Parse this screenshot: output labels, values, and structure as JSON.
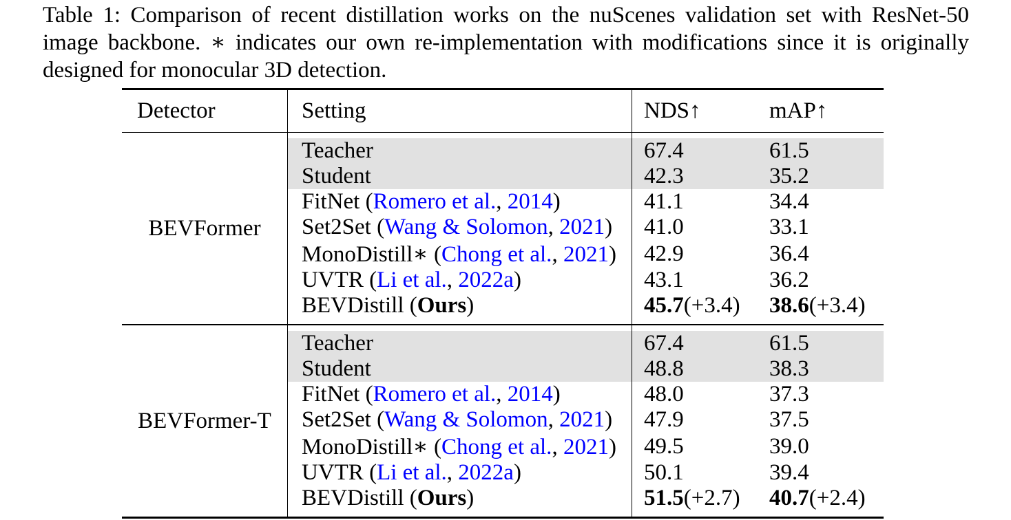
{
  "caption": {
    "lines": [
      "Table 1: Comparison of recent distillation works on the nuScenes validation set with ResNet-50",
      "image backbone. ∗ indicates our own re-implementation with modifications since it is originally",
      "designed for monocular 3D detection."
    ]
  },
  "table": {
    "headers": {
      "detector": "Detector",
      "setting": "Setting",
      "nds": "NDS↑",
      "map": "mAP↑"
    },
    "colors": {
      "link": "#0000FF",
      "shaded_row": "#E1E1E1",
      "rule": "#000000"
    },
    "groups": [
      {
        "detector": "BEVFormer",
        "rows": [
          {
            "shaded": true,
            "setting": [
              {
                "t": "Teacher",
                "s": "plain"
              }
            ],
            "nds": [
              {
                "t": "67.4",
                "s": "plain"
              }
            ],
            "map": [
              {
                "t": "61.5",
                "s": "plain"
              }
            ]
          },
          {
            "shaded": true,
            "setting": [
              {
                "t": "Student",
                "s": "plain"
              }
            ],
            "nds": [
              {
                "t": "42.3",
                "s": "plain"
              }
            ],
            "map": [
              {
                "t": "35.2",
                "s": "plain"
              }
            ]
          },
          {
            "shaded": false,
            "setting": [
              {
                "t": "FitNet (",
                "s": "plain"
              },
              {
                "t": "Romero et al.",
                "s": "link"
              },
              {
                "t": ", ",
                "s": "plain"
              },
              {
                "t": "2014",
                "s": "link"
              },
              {
                "t": ")",
                "s": "plain"
              }
            ],
            "nds": [
              {
                "t": "41.1",
                "s": "plain"
              }
            ],
            "map": [
              {
                "t": "34.4",
                "s": "plain"
              }
            ]
          },
          {
            "shaded": false,
            "setting": [
              {
                "t": "Set2Set (",
                "s": "plain"
              },
              {
                "t": "Wang & Solomon",
                "s": "link"
              },
              {
                "t": ", ",
                "s": "plain"
              },
              {
                "t": "2021",
                "s": "link"
              },
              {
                "t": ")",
                "s": "plain"
              }
            ],
            "nds": [
              {
                "t": "41.0",
                "s": "plain"
              }
            ],
            "map": [
              {
                "t": "33.1",
                "s": "plain"
              }
            ]
          },
          {
            "shaded": false,
            "setting": [
              {
                "t": "MonoDistill∗ (",
                "s": "plain"
              },
              {
                "t": "Chong et al.",
                "s": "link"
              },
              {
                "t": ", ",
                "s": "plain"
              },
              {
                "t": "2021",
                "s": "link"
              },
              {
                "t": ")",
                "s": "plain"
              }
            ],
            "nds": [
              {
                "t": "42.9",
                "s": "plain"
              }
            ],
            "map": [
              {
                "t": "36.4",
                "s": "plain"
              }
            ]
          },
          {
            "shaded": false,
            "setting": [
              {
                "t": "UVTR (",
                "s": "plain"
              },
              {
                "t": "Li et al.",
                "s": "link"
              },
              {
                "t": ", ",
                "s": "plain"
              },
              {
                "t": "2022a",
                "s": "link"
              },
              {
                "t": ")",
                "s": "plain"
              }
            ],
            "nds": [
              {
                "t": "43.1",
                "s": "plain"
              }
            ],
            "map": [
              {
                "t": "36.2",
                "s": "plain"
              }
            ]
          },
          {
            "shaded": false,
            "setting": [
              {
                "t": "BEVDistill (",
                "s": "plain"
              },
              {
                "t": "Ours",
                "s": "bold"
              },
              {
                "t": ")",
                "s": "plain"
              }
            ],
            "nds": [
              {
                "t": "45.7",
                "s": "bold"
              },
              {
                "t": "(+3.4)",
                "s": "plain"
              }
            ],
            "map": [
              {
                "t": "38.6",
                "s": "bold"
              },
              {
                "t": "(+3.4)",
                "s": "plain"
              }
            ]
          }
        ]
      },
      {
        "detector": "BEVFormer-T",
        "rows": [
          {
            "shaded": true,
            "setting": [
              {
                "t": "Teacher",
                "s": "plain"
              }
            ],
            "nds": [
              {
                "t": "67.4",
                "s": "plain"
              }
            ],
            "map": [
              {
                "t": "61.5",
                "s": "plain"
              }
            ]
          },
          {
            "shaded": true,
            "setting": [
              {
                "t": "Student",
                "s": "plain"
              }
            ],
            "nds": [
              {
                "t": "48.8",
                "s": "plain"
              }
            ],
            "map": [
              {
                "t": "38.3",
                "s": "plain"
              }
            ]
          },
          {
            "shaded": false,
            "setting": [
              {
                "t": "FitNet (",
                "s": "plain"
              },
              {
                "t": "Romero et al.",
                "s": "link"
              },
              {
                "t": ", ",
                "s": "plain"
              },
              {
                "t": "2014",
                "s": "link"
              },
              {
                "t": ")",
                "s": "plain"
              }
            ],
            "nds": [
              {
                "t": "48.0",
                "s": "plain"
              }
            ],
            "map": [
              {
                "t": "37.3",
                "s": "plain"
              }
            ]
          },
          {
            "shaded": false,
            "setting": [
              {
                "t": "Set2Set (",
                "s": "plain"
              },
              {
                "t": "Wang & Solomon",
                "s": "link"
              },
              {
                "t": ", ",
                "s": "plain"
              },
              {
                "t": "2021",
                "s": "link"
              },
              {
                "t": ")",
                "s": "plain"
              }
            ],
            "nds": [
              {
                "t": "47.9",
                "s": "plain"
              }
            ],
            "map": [
              {
                "t": "37.5",
                "s": "plain"
              }
            ]
          },
          {
            "shaded": false,
            "setting": [
              {
                "t": "MonoDistill∗ (",
                "s": "plain"
              },
              {
                "t": "Chong et al.",
                "s": "link"
              },
              {
                "t": ", ",
                "s": "plain"
              },
              {
                "t": "2021",
                "s": "link"
              },
              {
                "t": ")",
                "s": "plain"
              }
            ],
            "nds": [
              {
                "t": "49.5",
                "s": "plain"
              }
            ],
            "map": [
              {
                "t": "39.0",
                "s": "plain"
              }
            ]
          },
          {
            "shaded": false,
            "setting": [
              {
                "t": "UVTR (",
                "s": "plain"
              },
              {
                "t": "Li et al.",
                "s": "link"
              },
              {
                "t": ", ",
                "s": "plain"
              },
              {
                "t": "2022a",
                "s": "link"
              },
              {
                "t": ")",
                "s": "plain"
              }
            ],
            "nds": [
              {
                "t": "50.1",
                "s": "plain"
              }
            ],
            "map": [
              {
                "t": "39.4",
                "s": "plain"
              }
            ]
          },
          {
            "shaded": false,
            "setting": [
              {
                "t": "BEVDistill (",
                "s": "plain"
              },
              {
                "t": "Ours",
                "s": "bold"
              },
              {
                "t": ")",
                "s": "plain"
              }
            ],
            "nds": [
              {
                "t": "51.5",
                "s": "bold"
              },
              {
                "t": "(+2.7)",
                "s": "plain"
              }
            ],
            "map": [
              {
                "t": "40.7",
                "s": "bold"
              },
              {
                "t": "(+2.4)",
                "s": "plain"
              }
            ]
          }
        ]
      }
    ]
  }
}
